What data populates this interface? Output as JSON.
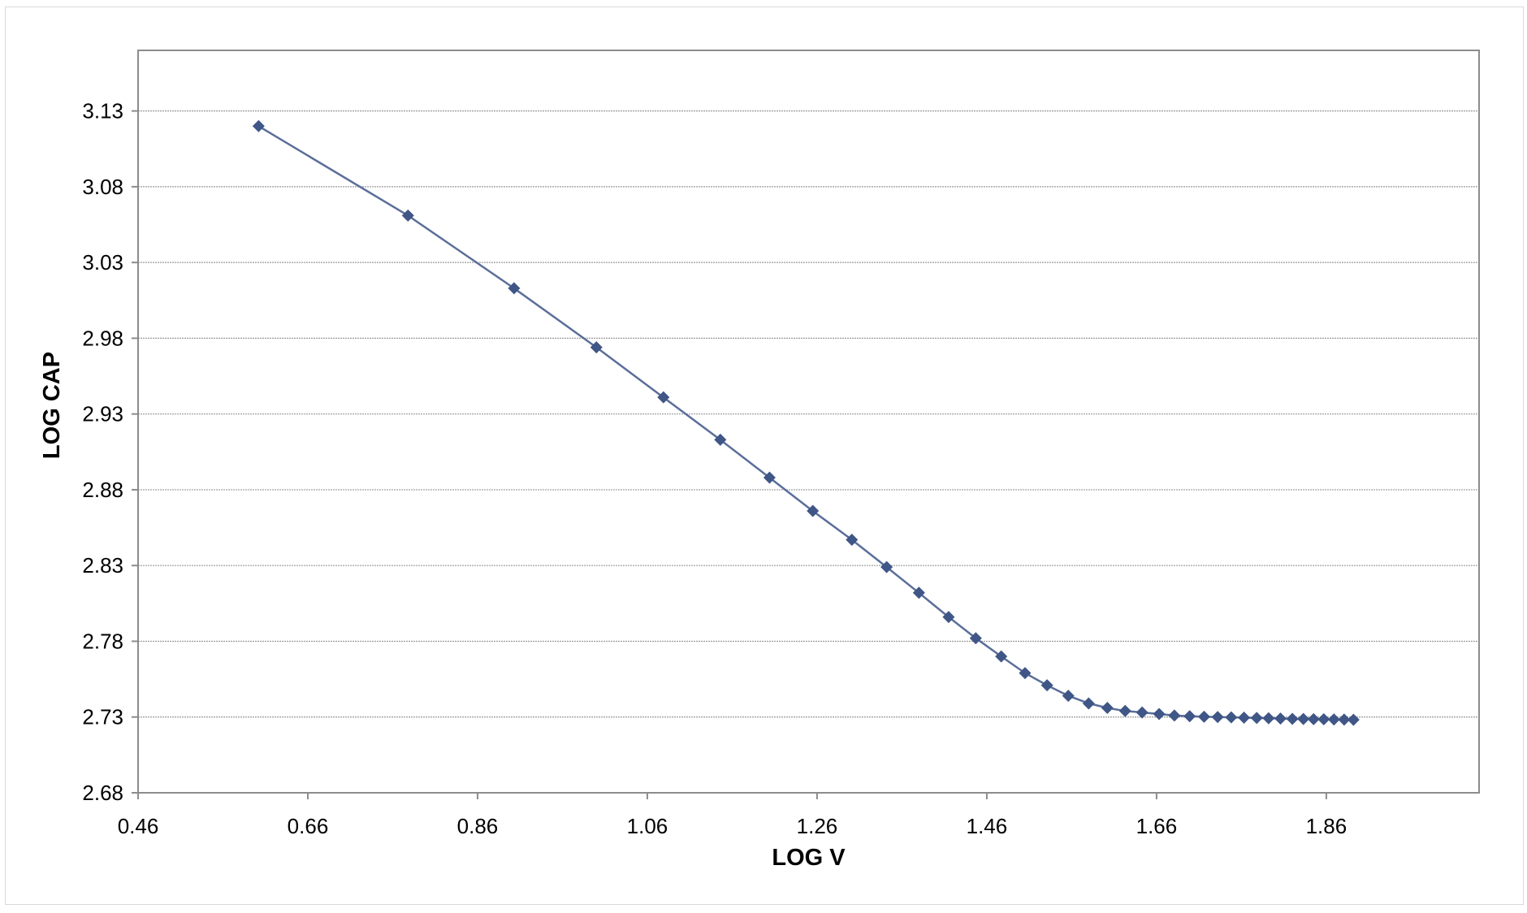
{
  "chart_data": {
    "type": "line",
    "title": "",
    "xlabel": "LOG V",
    "ylabel": "LOG CAP",
    "xlim": [
      0.46,
      2.04
    ],
    "ylim": [
      2.68,
      3.17
    ],
    "x_ticks": [
      0.46,
      0.66,
      0.86,
      1.06,
      1.26,
      1.46,
      1.66,
      1.86
    ],
    "x_tick_labels": [
      "0.46",
      "0.66",
      "0.86",
      "1.06",
      "1.26",
      "1.46",
      "1.66",
      "1.86"
    ],
    "y_ticks": [
      2.68,
      2.73,
      2.78,
      2.83,
      2.88,
      2.93,
      2.98,
      3.03,
      3.08,
      3.13
    ],
    "y_tick_labels": [
      "2.68",
      "2.73",
      "2.78",
      "2.83",
      "2.88",
      "2.93",
      "2.98",
      "3.03",
      "3.08",
      "3.13"
    ],
    "grid": "horizontal",
    "marker": "diamond",
    "colors": {
      "series": "#5a6e99",
      "marker": "#3f5686",
      "grid": "#9a9a9a",
      "plot_border": "#8c8c8c"
    },
    "series": [
      {
        "x": [
          0.602,
          0.778,
          0.903,
          1.0,
          1.079,
          1.146,
          1.204,
          1.255,
          1.301,
          1.342,
          1.38,
          1.415,
          1.447,
          1.477,
          1.505,
          1.531,
          1.556,
          1.58,
          1.602,
          1.623,
          1.643,
          1.663,
          1.681,
          1.699,
          1.716,
          1.732,
          1.748,
          1.763,
          1.778,
          1.792,
          1.806,
          1.82,
          1.833,
          1.845,
          1.857,
          1.869,
          1.881,
          1.892
        ],
        "y": [
          3.12,
          3.061,
          3.013,
          2.974,
          2.941,
          2.913,
          2.888,
          2.866,
          2.847,
          2.829,
          2.812,
          2.796,
          2.782,
          2.77,
          2.759,
          2.751,
          2.744,
          2.739,
          2.736,
          2.734,
          2.733,
          2.732,
          2.731,
          2.7305,
          2.7302,
          2.73,
          2.7298,
          2.7296,
          2.7294,
          2.7292,
          2.729,
          2.7288,
          2.7287,
          2.7286,
          2.7285,
          2.7284,
          2.7283,
          2.7282
        ]
      }
    ]
  }
}
